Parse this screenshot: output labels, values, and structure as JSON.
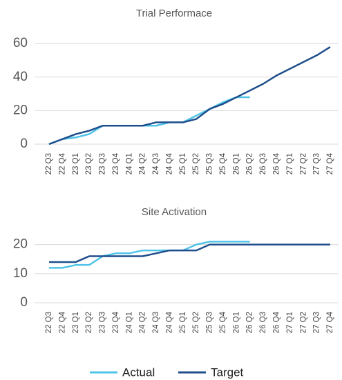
{
  "chart_data": [
    {
      "type": "line",
      "title": "Trial Performace",
      "categories": [
        "22 Q3",
        "22 Q4",
        "23 Q1",
        "23 Q2",
        "23 Q3",
        "23 Q4",
        "24 Q1",
        "24 Q2",
        "24 Q3",
        "24 Q4",
        "25 Q1",
        "25 Q2",
        "25 Q3",
        "25 Q4",
        "26 Q1",
        "26 Q2",
        "26 Q3",
        "26 Q4",
        "27 Q1",
        "27 Q2",
        "27 Q3",
        "27 Q4"
      ],
      "series": [
        {
          "name": "Actual",
          "color": "#4fc3e8",
          "values": [
            0,
            3,
            4,
            6,
            11,
            11,
            11,
            11,
            11,
            13,
            13,
            17,
            21,
            25,
            28,
            28,
            null,
            null,
            null,
            null,
            null,
            null
          ]
        },
        {
          "name": "Target",
          "color": "#1f4e8c",
          "values": [
            0,
            3,
            6,
            8,
            11,
            11,
            11,
            11,
            13,
            13,
            13,
            15,
            21,
            24,
            28,
            32,
            36,
            41,
            45,
            49,
            53,
            58
          ]
        }
      ],
      "ylim": [
        0,
        65
      ],
      "yticks": [
        0,
        20,
        40,
        60
      ],
      "grid": true
    },
    {
      "type": "line",
      "title": "Site Activation",
      "categories": [
        "22 Q3",
        "22 Q4",
        "23 Q1",
        "23 Q2",
        "23 Q3",
        "23 Q4",
        "24 Q1",
        "24 Q2",
        "24 Q3",
        "24 Q4",
        "25 Q1",
        "25 Q2",
        "25 Q3",
        "25 Q4",
        "26 Q1",
        "26 Q2",
        "26 Q3",
        "26 Q4",
        "27 Q1",
        "27 Q2",
        "27 Q3",
        "27 Q4"
      ],
      "series": [
        {
          "color": "#4fc3e8",
          "values": [
            12,
            12,
            13,
            13,
            16,
            17,
            17,
            18,
            18,
            18,
            18,
            20,
            21,
            21,
            21,
            21,
            null,
            null,
            null,
            null,
            null,
            null
          ]
        },
        {
          "color": "#1f4e8c",
          "values": [
            14,
            14,
            14,
            16,
            16,
            16,
            16,
            16,
            17,
            18,
            18,
            18,
            20,
            20,
            20,
            20,
            20,
            20,
            20,
            20,
            20,
            20
          ]
        }
      ],
      "ylim": [
        0,
        23
      ],
      "yticks": [
        0,
        10,
        20
      ],
      "grid": true
    }
  ]
}
